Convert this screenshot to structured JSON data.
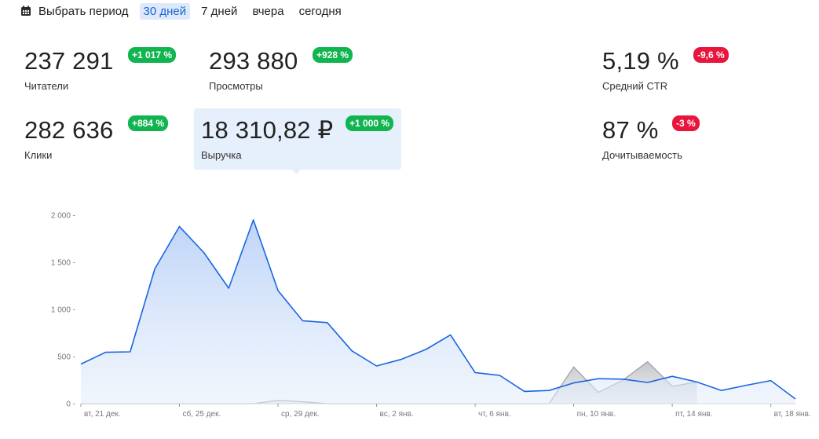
{
  "period": {
    "pick_label": "Выбрать период",
    "options": [
      {
        "label": "30 дней",
        "active": true
      },
      {
        "label": "7 дней",
        "active": false
      },
      {
        "label": "вчера",
        "active": false
      },
      {
        "label": "сегодня",
        "active": false
      }
    ]
  },
  "metrics": {
    "readers": {
      "value": "237 291",
      "label": "Читатели",
      "change": "+1 017 %"
    },
    "views": {
      "value": "293 880",
      "label": "Просмотры",
      "change": "+928 %"
    },
    "ctr": {
      "value": "5,19 %",
      "label": "Средний CTR",
      "change": "-9,6 %"
    },
    "clicks": {
      "value": "282 636",
      "label": "Клики",
      "change": "+884 %"
    },
    "revenue": {
      "value": "18 310,82 ₽",
      "label": "Выручка",
      "change": "+1 000 %"
    },
    "readthrough": {
      "value": "87 %",
      "label": "Дочитываемость",
      "change": "-3 %"
    }
  },
  "colors": {
    "up": "#11b550",
    "down": "#e8153c",
    "accent": "#1a66d6",
    "series": "#1a66e0",
    "series_fill": "#b5cff7",
    "compare": "#9aa0a8"
  },
  "chart_data": {
    "type": "area",
    "y_ticks": [
      {
        "value": 0,
        "label": "0"
      },
      {
        "value": 500,
        "label": "500"
      },
      {
        "value": 1000,
        "label": "1 000"
      },
      {
        "value": 1500,
        "label": "1 500"
      },
      {
        "value": 2000,
        "label": "2 000"
      }
    ],
    "ylim": [
      0,
      2000
    ],
    "x_ticks": [
      {
        "index": 0,
        "label": "вт, 21 дек."
      },
      {
        "index": 4,
        "label": "сб, 25 дек."
      },
      {
        "index": 8,
        "label": "ср, 29 дек."
      },
      {
        "index": 12,
        "label": "вс, 2 янв."
      },
      {
        "index": 16,
        "label": "чт, 6 янв."
      },
      {
        "index": 20,
        "label": "пн, 10 янв."
      },
      {
        "index": 24,
        "label": "пт, 14 янв."
      },
      {
        "index": 28,
        "label": "вт, 18 янв."
      }
    ],
    "series": [
      {
        "values": [
          420,
          545,
          550,
          1430,
          1880,
          1600,
          1225,
          1950,
          1200,
          880,
          860,
          560,
          400,
          470,
          575,
          730,
          330,
          300,
          130,
          140,
          220,
          265,
          260,
          225,
          290,
          230,
          140,
          195,
          245,
          50
        ]
      },
      {
        "values": [
          0,
          0,
          0,
          0,
          0,
          0,
          0,
          0,
          35,
          20,
          0,
          0,
          0,
          0,
          0,
          0,
          0,
          0,
          0,
          0,
          390,
          120,
          250,
          445,
          185,
          230
        ]
      }
    ]
  }
}
